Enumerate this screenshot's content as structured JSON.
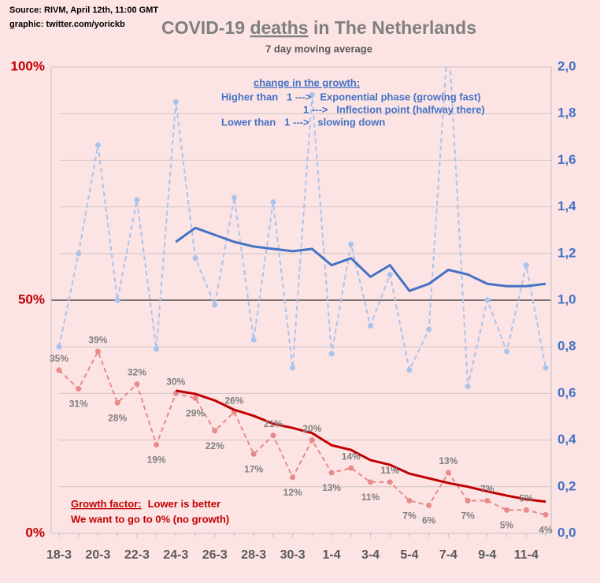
{
  "chart_data": {
    "type": "line",
    "source": "Source: RIVM, April 12th, 11:00 GMT",
    "credit": "graphic: twitter.com/yorickb",
    "title": [
      "COVID-19 ",
      "deaths",
      " in The Netherlands"
    ],
    "subtitle": "7 day moving average",
    "annotations": {
      "blue_heading": "change in the growth:",
      "blue_lines": [
        "Higher than   1 --->   Exponential phase (growing fast)",
        "1 --->   Inflection point (halfway there)",
        "Lower than   1 --->   slowing down"
      ],
      "red_heading": "Growth factor:",
      "red_heading_rest": "Lower is better",
      "red_line": "We want to go to 0% (no growth)"
    },
    "categories": [
      "18-3",
      null,
      "20-3",
      null,
      "22-3",
      null,
      "24-3",
      null,
      "26-3",
      null,
      "28-3",
      null,
      "30-3",
      null,
      "1-4",
      null,
      "3-4",
      null,
      "5-4",
      null,
      "7-4",
      null,
      "9-4",
      null,
      "11-4",
      null
    ],
    "ylim": [
      0,
      100
    ],
    "yticks": [
      {
        "value": 0,
        "label": "0%"
      },
      {
        "value": 50,
        "label": "50%"
      },
      {
        "value": 100,
        "label": "100%"
      }
    ],
    "y2lim": [
      0,
      2
    ],
    "y2ticks": [
      {
        "value": 0,
        "label": "0,0"
      },
      {
        "value": 0.2,
        "label": "0,2"
      },
      {
        "value": 0.4,
        "label": "0,4"
      },
      {
        "value": 0.6,
        "label": "0,6"
      },
      {
        "value": 0.8,
        "label": "0,8"
      },
      {
        "value": 1,
        "label": "1,0"
      },
      {
        "value": 1.2,
        "label": "1,2"
      },
      {
        "value": 1.4,
        "label": "1,4"
      },
      {
        "value": 1.6,
        "label": "1,6"
      },
      {
        "value": 1.8,
        "label": "1,8"
      },
      {
        "value": 2,
        "label": "2,0"
      }
    ],
    "grid": true,
    "series": [
      {
        "color": "#a9c4ec",
        "dashed": true,
        "markers": true,
        "axis": "y2",
        "values": [
          0.8,
          1.2,
          1.665,
          1.0,
          1.43,
          0.79,
          1.85,
          1.18,
          0.98,
          1.44,
          0.83,
          1.42,
          0.71,
          1.88,
          0.77,
          1.24,
          0.89,
          1.11,
          0.7,
          0.875,
          2.15,
          0.63,
          1.0,
          0.78,
          1.15,
          0.71
        ]
      },
      {
        "color": "#4472c4",
        "dashed": false,
        "markers": false,
        "axis": "y2",
        "values": [
          null,
          null,
          null,
          null,
          null,
          null,
          1.25,
          1.31,
          1.28,
          1.25,
          1.23,
          1.22,
          1.21,
          1.22,
          1.15,
          1.18,
          1.1,
          1.15,
          1.04,
          1.07,
          1.13,
          1.11,
          1.07,
          1.06,
          1.06,
          1.07
        ]
      },
      {
        "color": "#e88a8a",
        "dashed": true,
        "markers": true,
        "axis": "y",
        "values": [
          35,
          31,
          39,
          28,
          32,
          19,
          30,
          29,
          22,
          26,
          17,
          21,
          12,
          20,
          13,
          14,
          11,
          11,
          7,
          6,
          13,
          7,
          7,
          5,
          5,
          4
        ],
        "value_labels": [
          "35%",
          "31%",
          "39%",
          "28%",
          "32%",
          "19%",
          "30%",
          "29%",
          "22%",
          "26%",
          "17%",
          "21%",
          "12%",
          "20%",
          "13%",
          "14%",
          "11%",
          "11%",
          "7%",
          "6%",
          "13%",
          "7%",
          "7%",
          "5%",
          "5%",
          "4%"
        ]
      },
      {
        "color": "#c00000",
        "dashed": false,
        "markers": false,
        "axis": "y",
        "values": [
          null,
          null,
          null,
          null,
          null,
          null,
          30.6,
          29.9,
          28.5,
          26.5,
          25.2,
          23.5,
          22.6,
          21.5,
          18.9,
          17.9,
          15.7,
          14.7,
          12.8,
          11.8,
          10.8,
          10,
          9,
          8.1,
          7.3,
          6.8
        ]
      }
    ]
  }
}
